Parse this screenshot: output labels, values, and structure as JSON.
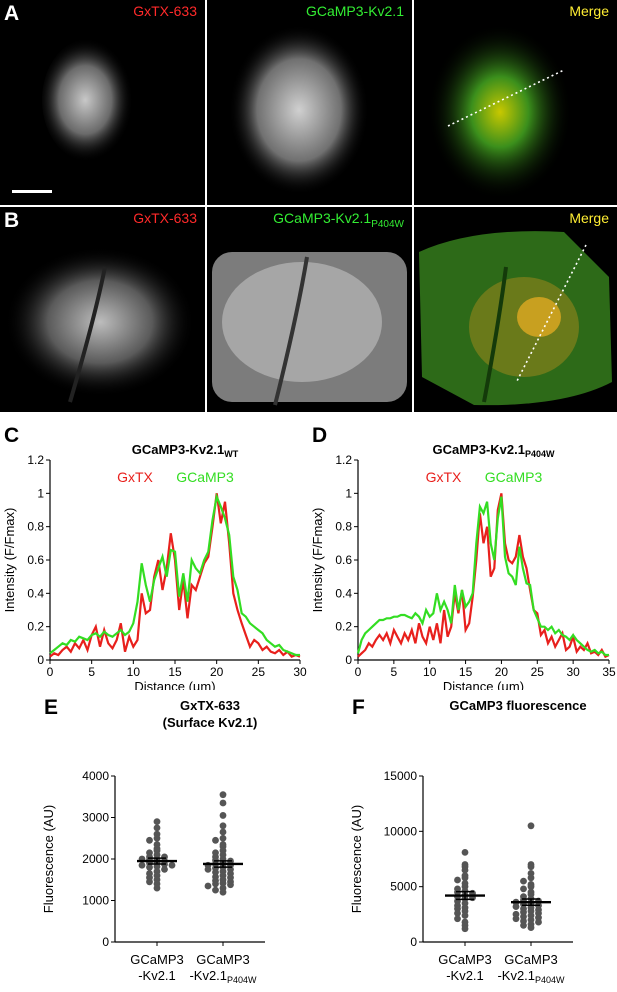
{
  "panels": {
    "A": {
      "label": "A",
      "channels": [
        "GxTX-633",
        "GCaMP3-Kv2.1",
        "Merge"
      ],
      "channel_colors": [
        "#ff2a2a",
        "#33ee33",
        "#ffee33"
      ]
    },
    "B": {
      "label": "B",
      "channels": [
        "GxTX-633",
        "GCaMP3-Kv2.1",
        "Merge"
      ],
      "ch2_subscript": "P404W",
      "channel_colors": [
        "#ff2a2a",
        "#33ee33",
        "#ffee33"
      ]
    },
    "C": {
      "label": "C"
    },
    "D": {
      "label": "D"
    },
    "E": {
      "label": "E"
    },
    "F": {
      "label": "F"
    }
  },
  "chart_data": [
    {
      "panel": "C",
      "type": "line",
      "title": "GCaMP3-Kv2.1",
      "title_subscript": "WT",
      "xlabel": "Distance (µm)",
      "ylabel": "Intensity (F/Fmax)",
      "xlim": [
        0,
        30
      ],
      "ylim": [
        0,
        1.2
      ],
      "xticks": [
        0,
        5,
        10,
        15,
        20,
        25,
        30
      ],
      "yticks": [
        0,
        0.2,
        0.4,
        0.6,
        0.8,
        1,
        1.2
      ],
      "series": [
        {
          "name": "GxTX",
          "color": "#e8201c",
          "x": [
            0,
            0.5,
            1,
            1.5,
            2,
            2.5,
            3,
            3.5,
            4,
            4.5,
            5,
            5.5,
            6,
            6.5,
            7,
            7.5,
            8,
            8.5,
            9,
            9.5,
            10,
            10.5,
            11,
            11.5,
            12,
            12.5,
            13,
            13.5,
            14,
            14.5,
            15,
            15.5,
            16,
            16.5,
            17,
            17.5,
            18,
            18.5,
            19,
            19.5,
            20,
            20.5,
            21,
            21.5,
            22,
            22.5,
            23,
            23.5,
            24,
            24.5,
            25,
            25.5,
            26,
            26.5,
            27,
            27.5,
            28,
            28.5,
            29,
            29.5,
            30
          ],
          "y": [
            0.02,
            0.04,
            0.03,
            0.06,
            0.08,
            0.05,
            0.1,
            0.07,
            0.12,
            0.06,
            0.15,
            0.2,
            0.08,
            0.18,
            0.1,
            0.07,
            0.12,
            0.22,
            0.05,
            0.14,
            0.08,
            0.12,
            0.4,
            0.28,
            0.3,
            0.5,
            0.6,
            0.42,
            0.55,
            0.76,
            0.6,
            0.3,
            0.48,
            0.25,
            0.45,
            0.42,
            0.5,
            0.58,
            0.62,
            0.8,
            1.0,
            0.82,
            0.95,
            0.7,
            0.4,
            0.3,
            0.22,
            0.15,
            0.08,
            0.12,
            0.1,
            0.06,
            0.08,
            0.05,
            0.04,
            0.06,
            0.03,
            0.05,
            0.02,
            0.03,
            0.02
          ]
        },
        {
          "name": "GCaMP3",
          "color": "#33dd22",
          "x": [
            0,
            0.5,
            1,
            1.5,
            2,
            2.5,
            3,
            3.5,
            4,
            4.5,
            5,
            5.5,
            6,
            6.5,
            7,
            7.5,
            8,
            8.5,
            9,
            9.5,
            10,
            10.5,
            11,
            11.5,
            12,
            12.5,
            13,
            13.5,
            14,
            14.5,
            15,
            15.5,
            16,
            16.5,
            17,
            17.5,
            18,
            18.5,
            19,
            19.5,
            20,
            20.5,
            21,
            21.5,
            22,
            22.5,
            23,
            23.5,
            24,
            24.5,
            25,
            25.5,
            26,
            26.5,
            27,
            27.5,
            28,
            28.5,
            29,
            29.5,
            30
          ],
          "y": [
            0.04,
            0.06,
            0.08,
            0.1,
            0.09,
            0.12,
            0.11,
            0.14,
            0.13,
            0.12,
            0.15,
            0.16,
            0.14,
            0.17,
            0.15,
            0.14,
            0.16,
            0.18,
            0.15,
            0.17,
            0.22,
            0.35,
            0.58,
            0.45,
            0.35,
            0.48,
            0.55,
            0.62,
            0.5,
            0.66,
            0.65,
            0.38,
            0.52,
            0.35,
            0.6,
            0.55,
            0.52,
            0.6,
            0.65,
            0.84,
            0.98,
            0.92,
            0.85,
            0.75,
            0.5,
            0.42,
            0.28,
            0.26,
            0.22,
            0.2,
            0.18,
            0.16,
            0.12,
            0.1,
            0.08,
            0.09,
            0.06,
            0.05,
            0.04,
            0.03,
            0.03
          ]
        }
      ]
    },
    {
      "panel": "D",
      "type": "line",
      "title": "GCaMP3-Kv2.1",
      "title_subscript": "P404W",
      "xlabel": "Distance (µm)",
      "ylabel": "Intensity (F/Fmax)",
      "xlim": [
        0,
        35
      ],
      "ylim": [
        0,
        1.2
      ],
      "xticks": [
        0,
        5,
        10,
        15,
        20,
        25,
        30,
        35
      ],
      "yticks": [
        0,
        0.2,
        0.4,
        0.6,
        0.8,
        1,
        1.2
      ],
      "series": [
        {
          "name": "GxTX",
          "color": "#e8201c",
          "x": [
            0,
            0.5,
            1,
            1.5,
            2,
            2.5,
            3,
            3.5,
            4,
            4.5,
            5,
            5.5,
            6,
            6.5,
            7,
            7.5,
            8,
            8.5,
            9,
            9.5,
            10,
            10.5,
            11,
            11.5,
            12,
            12.5,
            13,
            13.5,
            14,
            14.5,
            15,
            15.5,
            16,
            16.5,
            17,
            17.5,
            18,
            18.5,
            19,
            19.5,
            20,
            20.5,
            21,
            21.5,
            22,
            22.5,
            23,
            23.5,
            24,
            24.5,
            25,
            25.5,
            26,
            26.5,
            27,
            27.5,
            28,
            28.5,
            29,
            29.5,
            30,
            30.5,
            31,
            31.5,
            32,
            32.5,
            33,
            33.5,
            34,
            34.5,
            35
          ],
          "y": [
            0.02,
            0.04,
            0.06,
            0.1,
            0.08,
            0.12,
            0.15,
            0.12,
            0.16,
            0.1,
            0.18,
            0.14,
            0.1,
            0.16,
            0.12,
            0.18,
            0.1,
            0.22,
            0.14,
            0.1,
            0.2,
            0.12,
            0.22,
            0.1,
            0.3,
            0.14,
            0.2,
            0.4,
            0.28,
            0.42,
            0.18,
            0.22,
            0.38,
            0.6,
            0.88,
            0.7,
            0.8,
            0.5,
            0.55,
            0.9,
            1.0,
            0.7,
            0.6,
            0.58,
            0.62,
            0.75,
            0.62,
            0.55,
            0.42,
            0.3,
            0.28,
            0.15,
            0.18,
            0.1,
            0.14,
            0.08,
            0.12,
            0.16,
            0.06,
            0.08,
            0.14,
            0.05,
            0.08,
            0.06,
            0.1,
            0.04,
            0.05,
            0.03,
            0.06,
            0.02,
            0.03
          ]
        },
        {
          "name": "GCaMP3",
          "color": "#33dd22",
          "x": [
            0,
            0.5,
            1,
            1.5,
            2,
            2.5,
            3,
            3.5,
            4,
            4.5,
            5,
            5.5,
            6,
            6.5,
            7,
            7.5,
            8,
            8.5,
            9,
            9.5,
            10,
            10.5,
            11,
            11.5,
            12,
            12.5,
            13,
            13.5,
            14,
            14.5,
            15,
            15.5,
            16,
            16.5,
            17,
            17.5,
            18,
            18.5,
            19,
            19.5,
            20,
            20.5,
            21,
            21.5,
            22,
            22.5,
            23,
            23.5,
            24,
            24.5,
            25,
            25.5,
            26,
            26.5,
            27,
            27.5,
            28,
            28.5,
            29,
            29.5,
            30,
            30.5,
            31,
            31.5,
            32,
            32.5,
            33,
            33.5,
            34,
            34.5,
            35
          ],
          "y": [
            0.04,
            0.12,
            0.16,
            0.18,
            0.2,
            0.22,
            0.24,
            0.24,
            0.25,
            0.25,
            0.26,
            0.26,
            0.27,
            0.27,
            0.26,
            0.25,
            0.28,
            0.26,
            0.22,
            0.3,
            0.26,
            0.28,
            0.4,
            0.3,
            0.35,
            0.3,
            0.22,
            0.45,
            0.3,
            0.42,
            0.32,
            0.35,
            0.4,
            0.7,
            0.92,
            0.88,
            0.95,
            0.7,
            0.6,
            0.85,
            0.98,
            0.62,
            0.52,
            0.5,
            0.45,
            0.68,
            0.55,
            0.46,
            0.45,
            0.3,
            0.25,
            0.2,
            0.2,
            0.18,
            0.2,
            0.16,
            0.18,
            0.15,
            0.14,
            0.12,
            0.15,
            0.12,
            0.1,
            0.08,
            0.06,
            0.05,
            0.06,
            0.04,
            0.05,
            0.03,
            0.03
          ]
        }
      ]
    },
    {
      "panel": "E",
      "type": "scatter",
      "title": "GxTX-633",
      "subtitle": "(Surface Kv2.1)",
      "ylabel": "Fluorescence (AU)",
      "ylim": [
        0,
        4000
      ],
      "yticks": [
        0,
        1000,
        2000,
        3000,
        4000
      ],
      "categories": [
        {
          "line1": "GCaMP3",
          "line2": "-Kv2.1",
          "subscript": ""
        },
        {
          "line1": "GCaMP3",
          "line2": "-Kv2.1",
          "subscript": "P404W"
        }
      ],
      "means": [
        1950,
        1880
      ],
      "sems": [
        70,
        75
      ],
      "points": [
        [
          2900,
          2750,
          2600,
          2500,
          2450,
          2350,
          2250,
          2200,
          2150,
          2100,
          2050,
          2000,
          1980,
          1950,
          1920,
          1900,
          1870,
          1850,
          1820,
          1800,
          1750,
          1700,
          1650,
          1600,
          1550,
          1500,
          1450,
          1400,
          1300,
          2000,
          1850,
          2050
        ],
        [
          3550,
          3350,
          3050,
          2800,
          2650,
          2500,
          2450,
          2350,
          2300,
          2200,
          2150,
          2100,
          2050,
          2000,
          1970,
          1950,
          1900,
          1880,
          1850,
          1800,
          1780,
          1750,
          1700,
          1680,
          1650,
          1600,
          1570,
          1550,
          1500,
          1480,
          1450,
          1420,
          1400,
          1380,
          1350,
          1300,
          1250,
          1200,
          1850,
          1750
        ]
      ]
    },
    {
      "panel": "F",
      "type": "scatter",
      "title": "GCaMP3 fluorescence",
      "ylabel": "Fluorescence (AU)",
      "ylim": [
        0,
        15000
      ],
      "yticks": [
        0,
        5000,
        10000,
        15000
      ],
      "categories": [
        {
          "line1": "GCaMP3",
          "line2": "-Kv2.1",
          "subscript": ""
        },
        {
          "line1": "GCaMP3",
          "line2": "-Kv2.1",
          "subscript": "P404W"
        }
      ],
      "means": [
        4200,
        3600
      ],
      "sems": [
        350,
        280
      ],
      "points": [
        [
          8100,
          7000,
          6800,
          6500,
          6000,
          5800,
          5600,
          5300,
          5000,
          4800,
          4600,
          4500,
          4400,
          4200,
          4100,
          4000,
          3900,
          3700,
          3500,
          3300,
          3100,
          3000,
          2800,
          2600,
          2400,
          2100,
          1800,
          1500,
          1200
        ],
        [
          10500,
          7000,
          6800,
          6200,
          5800,
          5500,
          5200,
          5000,
          4800,
          4500,
          4300,
          4100,
          3900,
          3800,
          3700,
          3600,
          3500,
          3400,
          3300,
          3200,
          3100,
          3000,
          2900,
          2800,
          2700,
          2600,
          2500,
          2400,
          2300,
          2200,
          2100,
          2000,
          1900,
          1800,
          1600,
          1500,
          1300
        ]
      ]
    }
  ],
  "scale_bar_present": true
}
